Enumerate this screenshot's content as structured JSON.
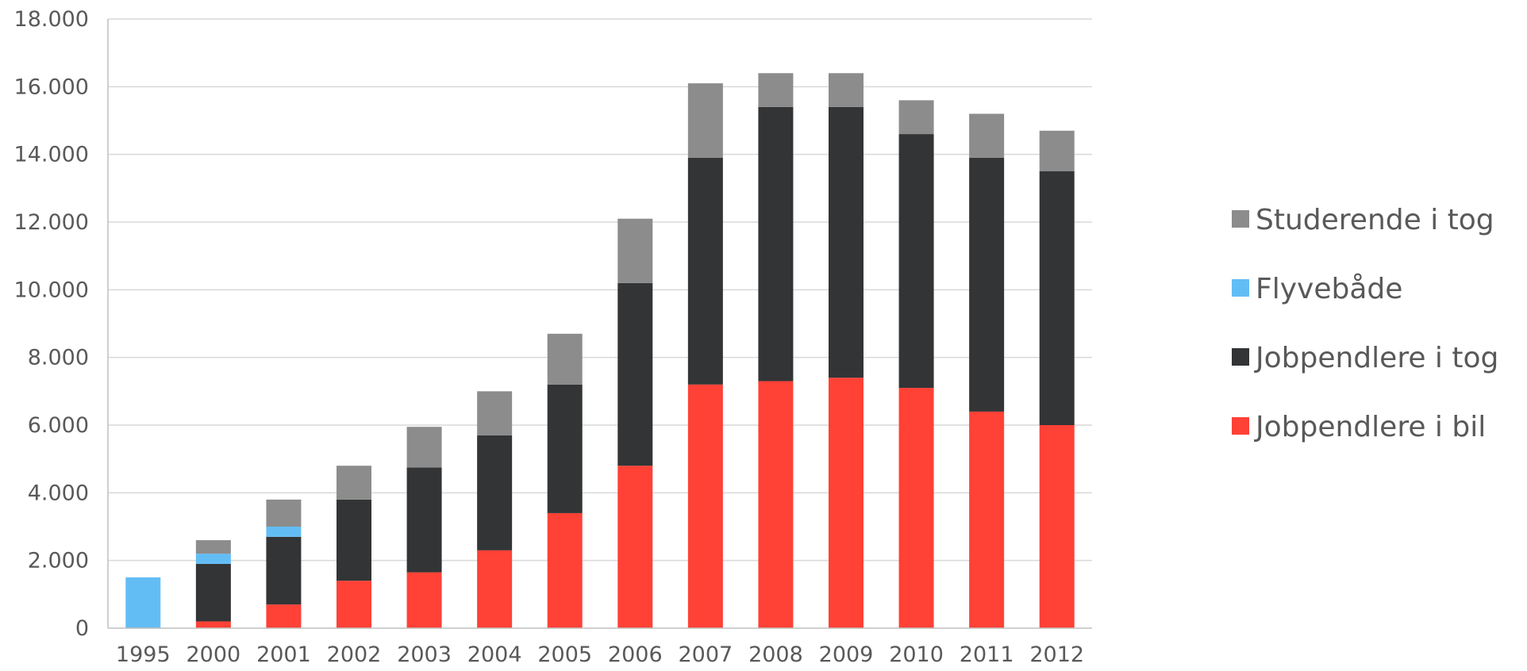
{
  "chart_data": {
    "type": "bar",
    "stacked": true,
    "title": "",
    "xlabel": "",
    "ylabel": "",
    "ylim": [
      0,
      18000
    ],
    "y_ticks": [
      0,
      2000,
      4000,
      6000,
      8000,
      10000,
      12000,
      14000,
      16000,
      18000
    ],
    "y_tick_labels": [
      "0",
      "2.000",
      "4.000",
      "6.000",
      "8.000",
      "10.000",
      "12.000",
      "14.000",
      "16.000",
      "18.000"
    ],
    "grid": true,
    "legend_position": "right",
    "categories": [
      "1995",
      "2000",
      "2001",
      "2002",
      "2003",
      "2004",
      "2005",
      "2006",
      "2007",
      "2008",
      "2009",
      "2010",
      "2011",
      "2012"
    ],
    "series": [
      {
        "name": "Jobpendlere i bil",
        "color": "#ff4136",
        "values": [
          0,
          200,
          700,
          1400,
          1650,
          2300,
          3400,
          4800,
          7200,
          7300,
          7400,
          7100,
          6400,
          6000
        ]
      },
      {
        "name": "Jobpendlere i tog",
        "color": "#333436",
        "values": [
          0,
          1700,
          2000,
          2400,
          3100,
          3400,
          3800,
          5400,
          6700,
          8100,
          8000,
          7500,
          7500,
          7500
        ]
      },
      {
        "name": "Flyvebåde",
        "color": "#63bdf5",
        "values": [
          1500,
          300,
          300,
          0,
          0,
          0,
          0,
          0,
          0,
          0,
          0,
          0,
          0,
          0
        ]
      },
      {
        "name": "Studerende i tog",
        "color": "#8c8c8c",
        "values": [
          0,
          400,
          800,
          1000,
          1200,
          1300,
          1500,
          1900,
          2200,
          1000,
          1000,
          1000,
          1300,
          1200
        ]
      }
    ],
    "legend_order": [
      "Studerende i tog",
      "Flyvebåde",
      "Jobpendlere i tog",
      "Jobpendlere i bil"
    ]
  }
}
